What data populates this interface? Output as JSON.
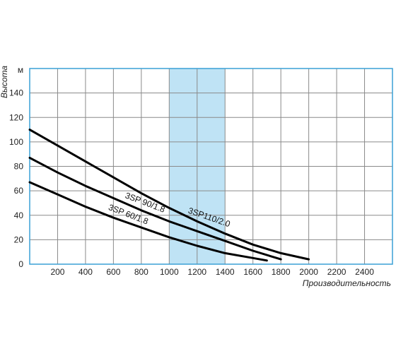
{
  "chart_data": {
    "type": "line",
    "xlabel": "Производительность",
    "ylabel": "Высота",
    "y_unit": "м",
    "xlim": [
      0,
      2600
    ],
    "ylim": [
      0,
      160
    ],
    "x_ticks": [
      200,
      400,
      600,
      800,
      1000,
      1200,
      1400,
      1600,
      1800,
      2000,
      2200,
      2400
    ],
    "x_tick_labels": [
      "200",
      "400",
      "600",
      "800",
      "1000",
      "1200",
      "1400",
      "1600",
      "1800",
      "2000",
      "2200",
      "2400"
    ],
    "y_ticks": [
      0,
      20,
      40,
      60,
      80,
      100,
      120,
      140
    ],
    "y_tick_labels": [
      "0",
      "20",
      "40",
      "60",
      "80",
      "100",
      "120",
      "140"
    ],
    "grid": true,
    "highlight_band": {
      "x_range": [
        1000,
        1400
      ],
      "color": "#bfe3f5"
    },
    "frame_color": "#3aa0d5",
    "line_color": "#000000",
    "series": [
      {
        "name": "3SP110/2.0",
        "x": [
          0,
          200,
          400,
          600,
          800,
          1000,
          1200,
          1400,
          1600,
          1800,
          2000
        ],
        "y": [
          110,
          97,
          84,
          71,
          58,
          46,
          35,
          25,
          16,
          9,
          4
        ]
      },
      {
        "name": "3SP 90/1.8",
        "x": [
          0,
          200,
          400,
          600,
          800,
          1000,
          1200,
          1400,
          1600,
          1800
        ],
        "y": [
          87,
          75,
          64,
          54,
          44,
          35,
          27,
          19,
          11,
          4
        ]
      },
      {
        "name": "3SP 60/1.8",
        "x": [
          0,
          200,
          400,
          600,
          800,
          1000,
          1200,
          1400,
          1600,
          1700
        ],
        "y": [
          67,
          57,
          47,
          38,
          30,
          22,
          15,
          9,
          5,
          3
        ]
      }
    ]
  }
}
